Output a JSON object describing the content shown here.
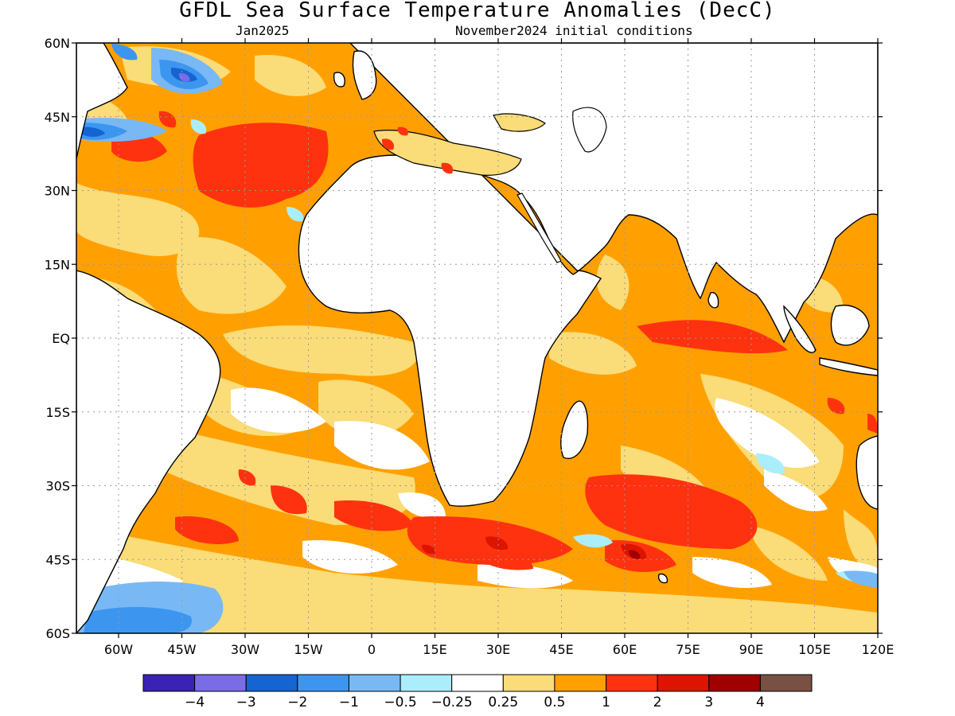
{
  "title": "GFDL Sea Surface Temperature Anomalies (DecC)",
  "subtitle_left": "Jan2025",
  "subtitle_right": "November2024 initial conditions",
  "map": {
    "lon_range": [
      -70,
      120
    ],
    "lat_range": [
      -60,
      60
    ],
    "lat_ticks": [
      {
        "value": 60,
        "label": "60N"
      },
      {
        "value": 45,
        "label": "45N"
      },
      {
        "value": 30,
        "label": "30N"
      },
      {
        "value": 15,
        "label": "15N"
      },
      {
        "value": 0,
        "label": "EQ"
      },
      {
        "value": -15,
        "label": "15S"
      },
      {
        "value": -30,
        "label": "30S"
      },
      {
        "value": -45,
        "label": "45S"
      },
      {
        "value": -60,
        "label": "60S"
      }
    ],
    "lon_ticks": [
      {
        "value": -60,
        "label": "60W"
      },
      {
        "value": -45,
        "label": "45W"
      },
      {
        "value": -30,
        "label": "30W"
      },
      {
        "value": -15,
        "label": "15W"
      },
      {
        "value": 0,
        "label": "0"
      },
      {
        "value": 15,
        "label": "15E"
      },
      {
        "value": 30,
        "label": "30E"
      },
      {
        "value": 45,
        "label": "45E"
      },
      {
        "value": 60,
        "label": "60E"
      },
      {
        "value": 75,
        "label": "75E"
      },
      {
        "value": 90,
        "label": "90E"
      },
      {
        "value": 105,
        "label": "105E"
      },
      {
        "value": 120,
        "label": "120E"
      }
    ],
    "gridlines": true
  },
  "colorbar": {
    "colors": [
      "#3a22b4",
      "#7a6ce6",
      "#1464d2",
      "#3c96f0",
      "#78b9f5",
      "#aaeefc",
      "#ffffff",
      "#fadc78",
      "#ffa000",
      "#ff3210",
      "#dc1400",
      "#a00000",
      "#785044"
    ],
    "labels": [
      "−4",
      "−3",
      "−2",
      "−1",
      "−0.5",
      "−0.25",
      "0.25",
      "0.5",
      "1",
      "2",
      "3",
      "4"
    ]
  }
}
